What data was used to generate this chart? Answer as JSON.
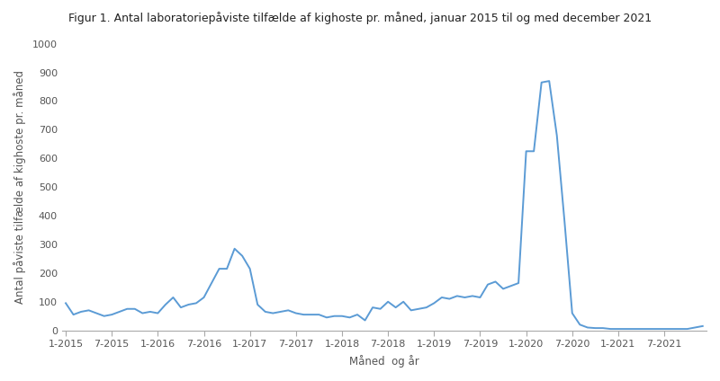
{
  "title": "Figur 1. Antal laboratoriepåviste tilfælde af kighoste pr. måned, januar 2015 til og med december 2021",
  "xlabel": "Måned  og år",
  "ylabel": "Antal påviste tilfælde af kighoste pr. måned",
  "line_color": "#5B9BD5",
  "background_color": "#ffffff",
  "ylim": [
    0,
    1000
  ],
  "yticks": [
    0,
    100,
    200,
    300,
    400,
    500,
    600,
    700,
    800,
    900,
    1000
  ],
  "xtick_labels": [
    "1-2015",
    "7-2015",
    "1-2016",
    "7-2016",
    "1-2017",
    "7-2017",
    "1-2018",
    "7-2018",
    "1-2019",
    "7-2019",
    "1-2020",
    "7-2020",
    "1-2021",
    "7-2021"
  ],
  "values": [
    95,
    55,
    65,
    70,
    60,
    50,
    55,
    65,
    75,
    75,
    60,
    65,
    60,
    90,
    115,
    80,
    90,
    95,
    115,
    165,
    215,
    215,
    285,
    260,
    215,
    90,
    65,
    60,
    65,
    70,
    60,
    55,
    55,
    55,
    45,
    50,
    50,
    45,
    55,
    35,
    80,
    75,
    100,
    80,
    100,
    70,
    75,
    80,
    95,
    115,
    110,
    120,
    115,
    120,
    115,
    160,
    170,
    145,
    155,
    165,
    625,
    625,
    865,
    870,
    680,
    380,
    60,
    20,
    10,
    8,
    8,
    5,
    5,
    5,
    5,
    5,
    5,
    5,
    5,
    5,
    5,
    5,
    10,
    15
  ],
  "title_fontsize": 9,
  "axis_label_fontsize": 8.5,
  "tick_fontsize": 8,
  "tick_color": "#555555",
  "spine_color": "#aaaaaa",
  "line_width": 1.4
}
